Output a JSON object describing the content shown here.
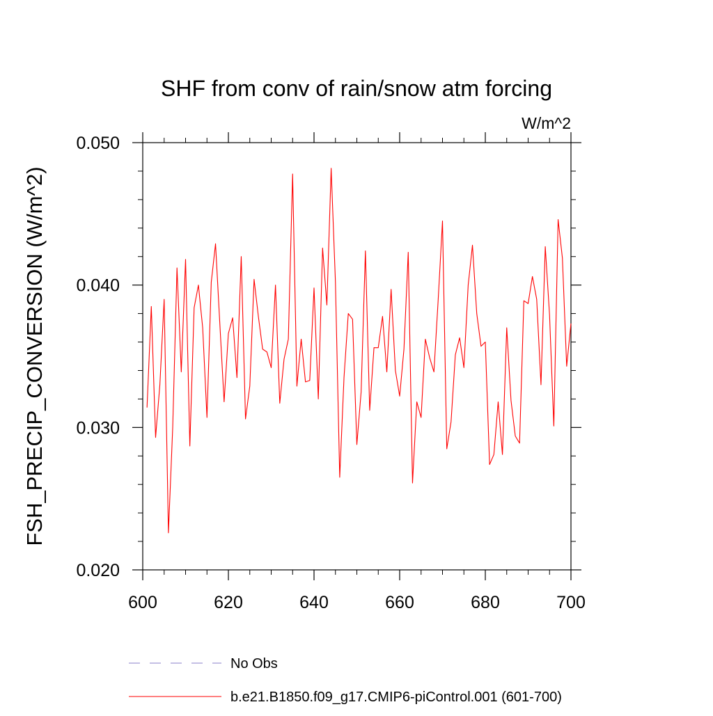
{
  "chart_data": {
    "type": "line",
    "title": "SHF from conv of rain/snow atm forcing",
    "units": "W/m^2",
    "xlabel": "",
    "ylabel": "FSH_PRECIP_CONVERSION  (W/m^2)",
    "xlim": [
      600,
      700
    ],
    "ylim": [
      0.02,
      0.05
    ],
    "x_ticks": [
      600,
      620,
      640,
      660,
      680,
      700
    ],
    "x_tick_labels": [
      "600",
      "620",
      "640",
      "660",
      "680",
      "700"
    ],
    "y_ticks": [
      0.02,
      0.03,
      0.04,
      0.05
    ],
    "y_tick_labels": [
      "0.020",
      "0.030",
      "0.040",
      "0.050"
    ],
    "grid": false,
    "legend_position": "bottom",
    "series": [
      {
        "name": "b.e21.B1850.f09_g17.CMIP6-piControl.001 (601-700)",
        "color": "#ff0000",
        "style": "solid",
        "x": [
          601,
          602,
          603,
          604,
          605,
          606,
          607,
          608,
          609,
          610,
          611,
          612,
          613,
          614,
          615,
          616,
          617,
          618,
          619,
          620,
          621,
          622,
          623,
          624,
          625,
          626,
          627,
          628,
          629,
          630,
          631,
          632,
          633,
          634,
          635,
          636,
          637,
          638,
          639,
          640,
          641,
          642,
          643,
          644,
          645,
          646,
          647,
          648,
          649,
          650,
          651,
          652,
          653,
          654,
          655,
          656,
          657,
          658,
          659,
          660,
          661,
          662,
          663,
          664,
          665,
          666,
          667,
          668,
          669,
          670,
          671,
          672,
          673,
          674,
          675,
          676,
          677,
          678,
          679,
          680,
          681,
          682,
          683,
          684,
          685,
          686,
          687,
          688,
          689,
          690,
          691,
          692,
          693,
          694,
          695,
          696,
          697,
          698,
          699,
          700
        ],
        "y": [
          0.0314,
          0.0385,
          0.0293,
          0.033,
          0.039,
          0.0226,
          0.03,
          0.0412,
          0.0339,
          0.0418,
          0.0287,
          0.0384,
          0.04,
          0.037,
          0.0307,
          0.0402,
          0.0429,
          0.0373,
          0.0318,
          0.0366,
          0.0377,
          0.0335,
          0.042,
          0.0306,
          0.0329,
          0.0404,
          0.0378,
          0.0355,
          0.0353,
          0.0342,
          0.04,
          0.0317,
          0.0348,
          0.0362,
          0.0478,
          0.0329,
          0.0362,
          0.0332,
          0.0333,
          0.0398,
          0.032,
          0.0426,
          0.0386,
          0.0482,
          0.0402,
          0.0265,
          0.0335,
          0.038,
          0.0376,
          0.0288,
          0.0325,
          0.0424,
          0.0312,
          0.0356,
          0.0356,
          0.0378,
          0.0339,
          0.0397,
          0.034,
          0.0322,
          0.0355,
          0.0423,
          0.0261,
          0.0318,
          0.0307,
          0.0362,
          0.0349,
          0.0339,
          0.039,
          0.0445,
          0.0285,
          0.0304,
          0.0351,
          0.0363,
          0.0342,
          0.04,
          0.0428,
          0.038,
          0.0357,
          0.036,
          0.0274,
          0.0281,
          0.0318,
          0.0281,
          0.037,
          0.0319,
          0.0294,
          0.0289,
          0.0389,
          0.0387,
          0.0406,
          0.039,
          0.033,
          0.0427,
          0.0379,
          0.0301,
          0.0446,
          0.0419,
          0.0343,
          0.0373
        ]
      },
      {
        "name": "No Obs",
        "color": "#8a7fc8",
        "style": "dashed",
        "x": [],
        "y": []
      }
    ]
  }
}
